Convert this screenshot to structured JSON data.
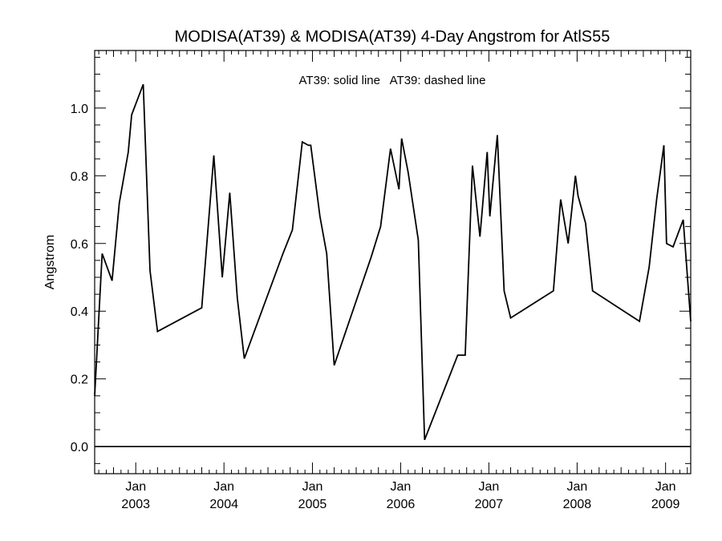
{
  "chart_data": {
    "type": "line",
    "title": "MODISA(AT39) & MODISA(AT39) 4-Day Angstrom for AtlS55",
    "ylabel": "Angstrom",
    "xlabel": "",
    "legend_text": "AT39: solid line   AT39: dashed line",
    "xlim": [
      "2002-07-15",
      "2009-04-15"
    ],
    "ylim": [
      -0.08,
      1.17
    ],
    "y_ticks": [
      "0.0",
      "0.2",
      "0.4",
      "0.6",
      "0.8",
      "1.0"
    ],
    "x_ticks": [
      {
        "month": "Jan",
        "year": "2003",
        "date": "2003-01-01"
      },
      {
        "month": "Jan",
        "year": "2004",
        "date": "2004-01-01"
      },
      {
        "month": "Jan",
        "year": "2005",
        "date": "2005-01-01"
      },
      {
        "month": "Jan",
        "year": "2006",
        "date": "2006-01-01"
      },
      {
        "month": "Jan",
        "year": "2007",
        "date": "2007-01-01"
      },
      {
        "month": "Jan",
        "year": "2008",
        "date": "2008-01-01"
      },
      {
        "month": "Jan",
        "year": "2009",
        "date": "2009-01-01"
      }
    ],
    "reference_line": 0.0,
    "series": [
      {
        "style": "solid",
        "points": [
          [
            "2002-07-15",
            0.15
          ],
          [
            "2002-08-15",
            0.57
          ],
          [
            "2002-09-25",
            0.49
          ],
          [
            "2002-10-25",
            0.72
          ],
          [
            "2002-12-01",
            0.87
          ],
          [
            "2002-12-15",
            0.98
          ],
          [
            "2003-02-01",
            1.07
          ],
          [
            "2003-03-01",
            0.52
          ],
          [
            "2003-04-01",
            0.34
          ],
          [
            "2003-10-01",
            0.41
          ],
          [
            "2003-11-20",
            0.86
          ],
          [
            "2003-12-25",
            0.5
          ],
          [
            "2004-01-25",
            0.75
          ],
          [
            "2004-02-25",
            0.44
          ],
          [
            "2004-03-25",
            0.26
          ],
          [
            "2004-09-01",
            0.57
          ],
          [
            "2004-10-10",
            0.64
          ],
          [
            "2004-11-20",
            0.9
          ],
          [
            "2004-12-15",
            0.89
          ],
          [
            "2004-12-25",
            0.89
          ],
          [
            "2005-02-01",
            0.68
          ],
          [
            "2005-03-01",
            0.57
          ],
          [
            "2005-04-01",
            0.24
          ],
          [
            "2005-09-01",
            0.56
          ],
          [
            "2005-10-10",
            0.65
          ],
          [
            "2005-11-20",
            0.88
          ],
          [
            "2005-12-25",
            0.76
          ],
          [
            "2006-01-05",
            0.91
          ],
          [
            "2006-02-01",
            0.81
          ],
          [
            "2006-03-15",
            0.61
          ],
          [
            "2006-04-10",
            0.02
          ],
          [
            "2006-08-25",
            0.27
          ],
          [
            "2006-09-25",
            0.27
          ],
          [
            "2006-10-25",
            0.83
          ],
          [
            "2006-11-25",
            0.62
          ],
          [
            "2006-12-25",
            0.87
          ],
          [
            "2007-01-05",
            0.68
          ],
          [
            "2007-02-05",
            0.92
          ],
          [
            "2007-03-05",
            0.46
          ],
          [
            "2007-04-01",
            0.38
          ],
          [
            "2007-09-25",
            0.46
          ],
          [
            "2007-10-25",
            0.73
          ],
          [
            "2007-11-25",
            0.6
          ],
          [
            "2007-12-25",
            0.8
          ],
          [
            "2008-01-05",
            0.74
          ],
          [
            "2008-02-05",
            0.66
          ],
          [
            "2008-03-05",
            0.46
          ],
          [
            "2008-09-15",
            0.37
          ],
          [
            "2008-10-25",
            0.53
          ],
          [
            "2008-11-25",
            0.73
          ],
          [
            "2008-12-25",
            0.89
          ],
          [
            "2009-01-05",
            0.6
          ],
          [
            "2009-02-01",
            0.59
          ],
          [
            "2009-03-15",
            0.67
          ],
          [
            "2009-04-15",
            0.37
          ]
        ]
      }
    ]
  }
}
